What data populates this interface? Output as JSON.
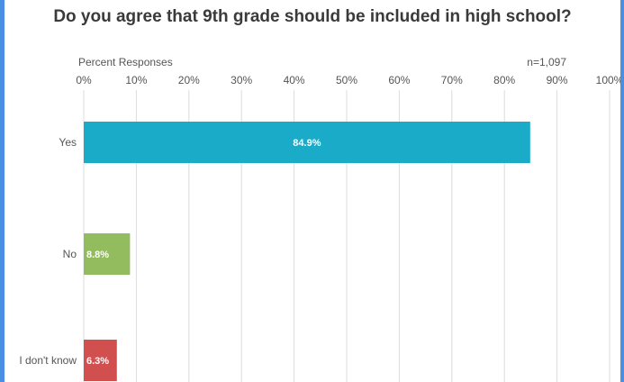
{
  "chart_data": {
    "type": "bar",
    "orientation": "horizontal",
    "title": "Do you agree that 9th grade should be included in high school?",
    "xlabel": "Percent Responses",
    "note": "n=1,097",
    "categories": [
      "Yes",
      "No",
      "I don't know"
    ],
    "values": [
      84.9,
      8.8,
      6.3
    ],
    "data_labels": [
      "84.9%",
      "8.8%",
      "6.3%"
    ],
    "bar_colors": [
      "#1aabc8",
      "#93bc5e",
      "#d14f4f"
    ],
    "xlim": [
      0,
      100
    ],
    "ticks": [
      0,
      10,
      20,
      30,
      40,
      50,
      60,
      70,
      80,
      90,
      100
    ],
    "tick_labels": [
      "0%",
      "10%",
      "20%",
      "30%",
      "40%",
      "50%",
      "60%",
      "70%",
      "80%",
      "90%",
      "100%"
    ],
    "grid": true,
    "legend": "none"
  }
}
